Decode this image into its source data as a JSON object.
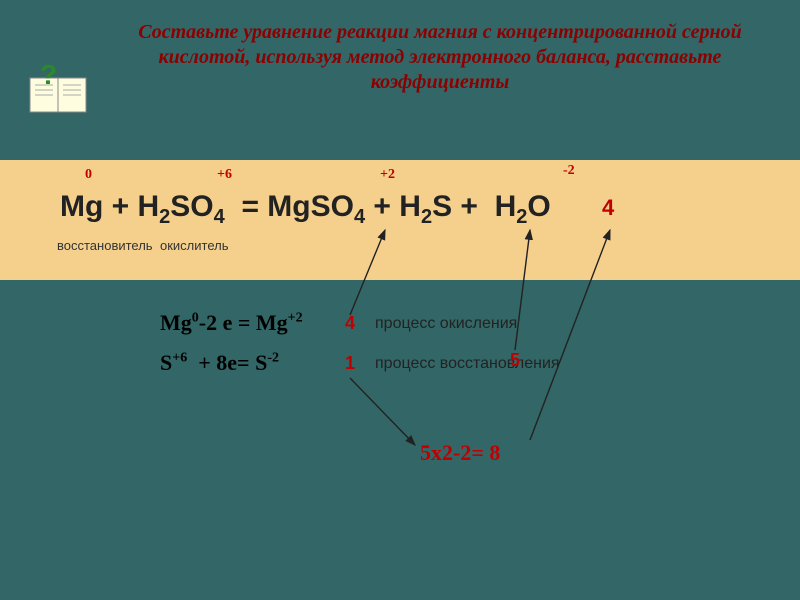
{
  "title": "Составьте уравнение реакции магния с концентрированной серной кислотой, используя метод электронного баланса, расставьте коэффициенты",
  "equation": {
    "text": "Mg + H₂SO₄  = MgSO₄ + H₂S + H₂O",
    "html": "Mg + H<sub>2</sub>SO<sub>4</sub>&nbsp;&nbsp;= MgSO<sub>4</sub> + H<sub>2</sub>S +&nbsp;&nbsp;H<sub>2</sub>O"
  },
  "charges": {
    "mg0": "0",
    "s6": "+6",
    "mg2": "+2",
    "sminus2": "-2"
  },
  "labels": {
    "reducer": "восстановитель",
    "oxidizer": "окислитель",
    "oxidation_process": "процесс окисления",
    "reduction_process": "процесс восстановления"
  },
  "coefficients": {
    "before_h2o": "4",
    "five": "5"
  },
  "half_reactions": {
    "mg_html": "Mg<sup>0</sup>-2 e = Mg<sup>+2</sup>",
    "s_html": "S<sup>+6</sup>&nbsp; + 8e= S<sup>-2</sup>",
    "mult_mg": "4",
    "mult_s": "1"
  },
  "calculation": "5x2-2= 8",
  "colors": {
    "bg": "#336666",
    "box": "#f4d08c",
    "red": "#c00000",
    "title": "#8b0000"
  }
}
